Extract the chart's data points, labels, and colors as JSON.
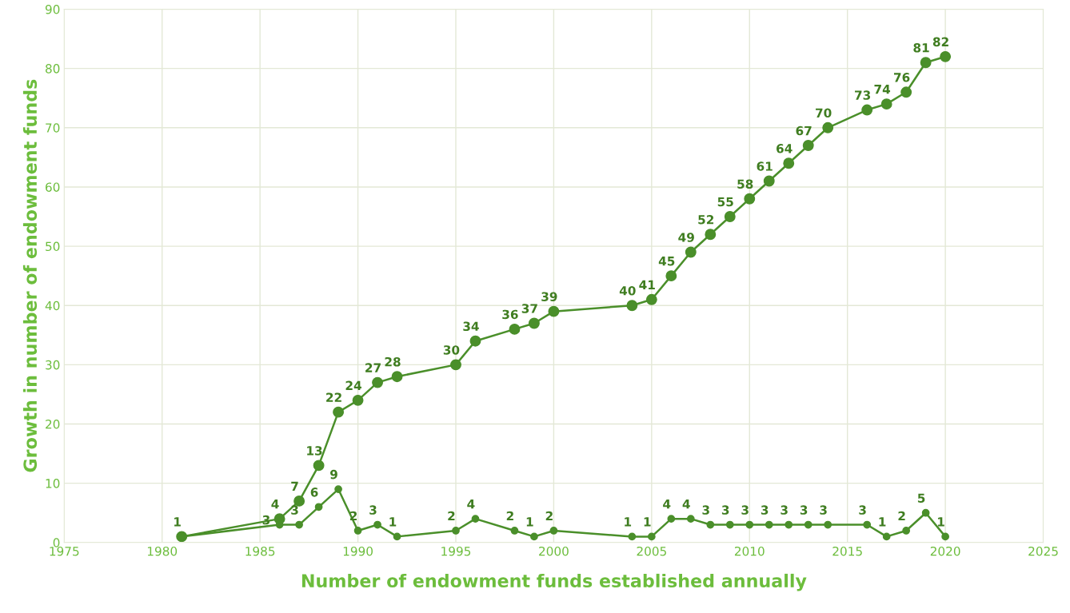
{
  "chart_data": {
    "type": "line",
    "xlabel": "Number of endowment funds established annually",
    "ylabel": "Growth in number of endowment funds",
    "series": [
      {
        "color": "#4a8f2a",
        "x": [
          1981,
          1986,
          1987,
          1988,
          1989,
          1990,
          1991,
          1992,
          1995,
          1996,
          1998,
          1999,
          2000,
          2004,
          2005,
          2006,
          2007,
          2008,
          2009,
          2010,
          2011,
          2012,
          2013,
          2014,
          2016,
          2017,
          2018,
          2019,
          2020
        ],
        "values": [
          1,
          4,
          7,
          13,
          22,
          24,
          27,
          28,
          30,
          34,
          36,
          37,
          39,
          40,
          41,
          45,
          49,
          52,
          55,
          58,
          61,
          64,
          67,
          70,
          73,
          74,
          76,
          81,
          82
        ],
        "value_labels": [
          "1",
          "4",
          "7",
          "13",
          "22",
          "24",
          "27",
          "28",
          "30",
          "34",
          "36",
          "37",
          "39",
          "40",
          "41",
          "45",
          "49",
          "52",
          "55",
          "58",
          "61",
          "64",
          "67",
          "70",
          "73",
          "74",
          "76",
          "81",
          "82"
        ]
      },
      {
        "color": "#4a8f2a",
        "x": [
          1981,
          1986,
          1987,
          1988,
          1989,
          1990,
          1991,
          1992,
          1995,
          1996,
          1998,
          1999,
          2000,
          2004,
          2005,
          2006,
          2007,
          2008,
          2009,
          2010,
          2011,
          2012,
          2013,
          2014,
          2016,
          2017,
          2018,
          2019,
          2020
        ],
        "values": [
          1,
          3,
          3,
          6,
          9,
          2,
          3,
          1,
          2,
          4,
          2,
          1,
          2,
          1,
          1,
          4,
          4,
          3,
          3,
          3,
          3,
          3,
          3,
          3,
          3,
          1,
          2,
          5,
          1
        ],
        "value_labels": [
          null,
          "3",
          "3",
          "6",
          "9",
          "2",
          "3",
          "1",
          "2",
          "4",
          "2",
          "1",
          "2",
          "1",
          "1",
          "4",
          "4",
          "3",
          "3",
          "3",
          "3",
          "3",
          "3",
          "3",
          "3",
          "1",
          "2",
          "5",
          "1"
        ]
      }
    ],
    "xlim": [
      1975,
      2025
    ],
    "xticks": [
      1975,
      1980,
      1985,
      1990,
      1995,
      2000,
      2005,
      2010,
      2015,
      2020,
      2025
    ],
    "ylim": [
      0,
      90
    ],
    "yticks": [
      0,
      10,
      20,
      30,
      40,
      50,
      60,
      70,
      80,
      90
    ],
    "grid": true,
    "marker": "circle",
    "line_style": "solid",
    "legend": false
  }
}
